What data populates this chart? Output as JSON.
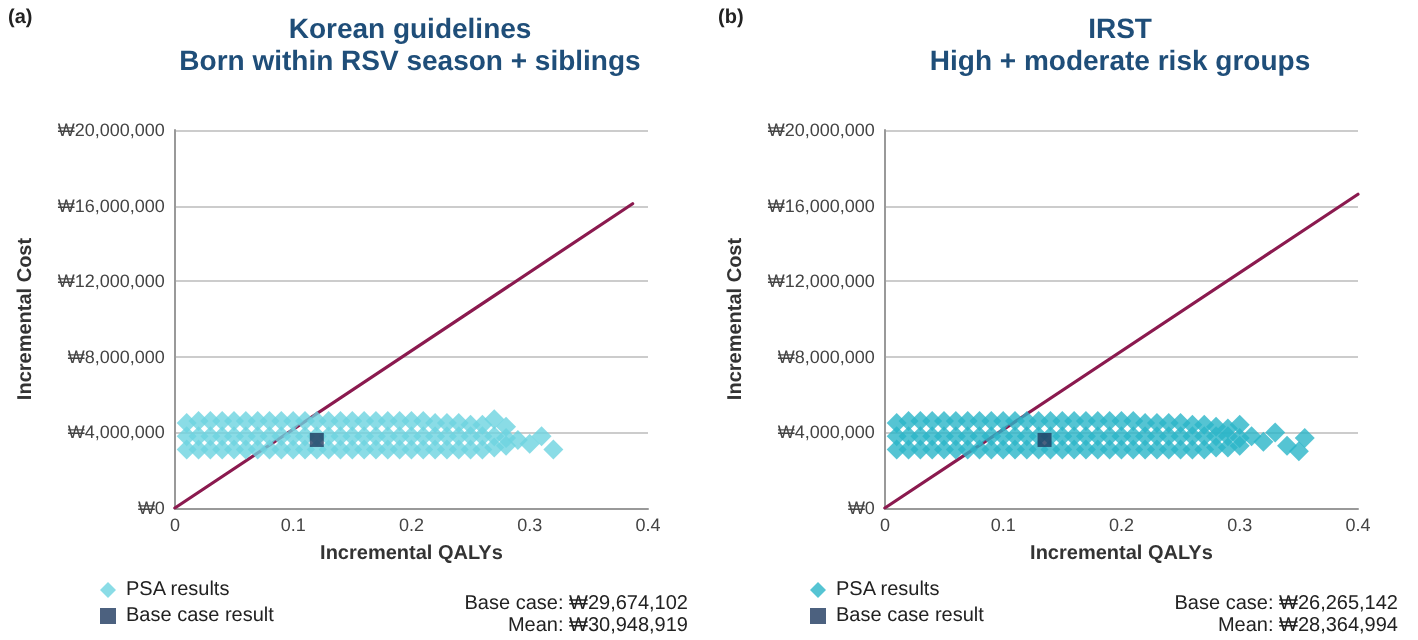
{
  "chart_data": [
    {
      "type": "scatter",
      "title": "Korean guidelines",
      "subtitle": "Born within RSV season + siblings",
      "xlabel": "Incremental QALYs",
      "ylabel": "Incremental Cost",
      "annotations": [
        "(a)",
        "Base case: ₩29,674,102",
        "Mean: ₩30,948,919"
      ],
      "xlim": [
        0,
        0.4
      ],
      "xticks": [
        0,
        0.1,
        0.2,
        0.3,
        0.4
      ],
      "ylim": [
        0,
        20000000
      ],
      "yticks": [
        {
          "value": 0,
          "label": "₩0"
        },
        {
          "value": 4000000,
          "label": "₩4,000,000"
        },
        {
          "value": 8000000,
          "label": "₩8,000,000"
        },
        {
          "value": 12000000,
          "label": "₩12,000,000"
        },
        {
          "value": 16000000,
          "label": "₩16,000,000"
        },
        {
          "value": 20000000,
          "label": "₩20,000,000"
        }
      ],
      "grid": "y",
      "legend": "bottom left",
      "series": [
        {
          "name": "PSA results",
          "marker": "diamond",
          "color": "#6dd3e0",
          "x": [
            0.01,
            0.02,
            0.03,
            0.04,
            0.05,
            0.06,
            0.07,
            0.08,
            0.09,
            0.1,
            0.11,
            0.12,
            0.13,
            0.14,
            0.15,
            0.16,
            0.17,
            0.18,
            0.19,
            0.2,
            0.21,
            0.22,
            0.23,
            0.24,
            0.25,
            0.26,
            0.27,
            0.28,
            0.01,
            0.02,
            0.03,
            0.04,
            0.05,
            0.06,
            0.07,
            0.08,
            0.09,
            0.1,
            0.11,
            0.12,
            0.13,
            0.14,
            0.15,
            0.16,
            0.17,
            0.18,
            0.19,
            0.2,
            0.21,
            0.22,
            0.23,
            0.24,
            0.25,
            0.26,
            0.27,
            0.28,
            0.01,
            0.02,
            0.03,
            0.04,
            0.05,
            0.06,
            0.07,
            0.08,
            0.09,
            0.1,
            0.11,
            0.12,
            0.13,
            0.14,
            0.15,
            0.16,
            0.17,
            0.18,
            0.19,
            0.2,
            0.21,
            0.22,
            0.23,
            0.24,
            0.25,
            0.26,
            0.27,
            0.28,
            0.29,
            0.3,
            0.31,
            0.32
          ],
          "values": [
            3100000,
            3100000,
            3100000,
            3100000,
            3100000,
            3100000,
            3100000,
            3100000,
            3100000,
            3100000,
            3100000,
            3100000,
            3100000,
            3100000,
            3100000,
            3100000,
            3100000,
            3100000,
            3100000,
            3100000,
            3100000,
            3100000,
            3100000,
            3100000,
            3100000,
            3100000,
            3200000,
            3300000,
            3800000,
            3800000,
            3800000,
            3800000,
            3800000,
            3800000,
            3800000,
            3800000,
            3800000,
            3800000,
            3800000,
            3800000,
            3800000,
            3800000,
            3800000,
            3800000,
            3800000,
            3800000,
            3800000,
            3800000,
            3800000,
            3800000,
            3800000,
            3800000,
            3800000,
            3800000,
            3800000,
            3700000,
            4500000,
            4600000,
            4600000,
            4600000,
            4600000,
            4600000,
            4600000,
            4600000,
            4600000,
            4600000,
            4600000,
            4600000,
            4600000,
            4600000,
            4600000,
            4600000,
            4600000,
            4600000,
            4600000,
            4600000,
            4600000,
            4500000,
            4500000,
            4500000,
            4400000,
            4400000,
            4700000,
            4300000,
            3600000,
            3400000,
            3800000,
            3100000
          ]
        },
        {
          "name": "Base case result",
          "marker": "square",
          "color": "#1f3a5f",
          "x": [
            0.12
          ],
          "values": [
            3600000
          ]
        },
        {
          "type": "line",
          "marker": "none",
          "line_style": "solid",
          "color": "#8b1a4f",
          "x": [
            0,
            0.387
          ],
          "values": [
            0,
            16100000
          ]
        }
      ]
    },
    {
      "type": "scatter",
      "title": "IRST",
      "subtitle": "High + moderate risk groups",
      "xlabel": "Incremental QALYs",
      "ylabel": "Incremental Cost",
      "annotations": [
        "(b)",
        "Base case: ₩26,265,142",
        "Mean: ₩28,364,994"
      ],
      "xlim": [
        0,
        0.4
      ],
      "xticks": [
        0,
        0.1,
        0.2,
        0.3,
        0.4
      ],
      "ylim": [
        0,
        20000000
      ],
      "yticks": [
        {
          "value": 0,
          "label": "₩0"
        },
        {
          "value": 4000000,
          "label": "₩4,000,000"
        },
        {
          "value": 8000000,
          "label": "₩8,000,000"
        },
        {
          "value": 12000000,
          "label": "₩12,000,000"
        },
        {
          "value": 16000000,
          "label": "₩16,000,000"
        },
        {
          "value": 20000000,
          "label": "₩20,000,000"
        }
      ],
      "grid": "y",
      "legend": "bottom left",
      "series": [
        {
          "name": "PSA results",
          "marker": "diamond",
          "color": "#2bb5c8",
          "x": [
            0.01,
            0.02,
            0.03,
            0.04,
            0.05,
            0.06,
            0.07,
            0.08,
            0.09,
            0.1,
            0.11,
            0.12,
            0.13,
            0.14,
            0.15,
            0.16,
            0.17,
            0.18,
            0.19,
            0.2,
            0.21,
            0.22,
            0.23,
            0.24,
            0.25,
            0.26,
            0.27,
            0.28,
            0.29,
            0.3,
            0.01,
            0.02,
            0.03,
            0.04,
            0.05,
            0.06,
            0.07,
            0.08,
            0.09,
            0.1,
            0.11,
            0.12,
            0.13,
            0.14,
            0.15,
            0.16,
            0.17,
            0.18,
            0.19,
            0.2,
            0.21,
            0.22,
            0.23,
            0.24,
            0.25,
            0.26,
            0.27,
            0.28,
            0.29,
            0.3,
            0.01,
            0.02,
            0.03,
            0.04,
            0.05,
            0.06,
            0.07,
            0.08,
            0.09,
            0.1,
            0.11,
            0.12,
            0.13,
            0.14,
            0.15,
            0.16,
            0.17,
            0.18,
            0.19,
            0.2,
            0.21,
            0.22,
            0.23,
            0.24,
            0.25,
            0.26,
            0.27,
            0.28,
            0.29,
            0.3,
            0.31,
            0.32,
            0.33,
            0.34,
            0.35,
            0.355
          ],
          "values": [
            3100000,
            3100000,
            3100000,
            3100000,
            3100000,
            3100000,
            3100000,
            3100000,
            3100000,
            3100000,
            3100000,
            3100000,
            3100000,
            3100000,
            3100000,
            3100000,
            3100000,
            3100000,
            3100000,
            3100000,
            3100000,
            3100000,
            3100000,
            3100000,
            3100000,
            3100000,
            3100000,
            3200000,
            3200000,
            3300000,
            3800000,
            3800000,
            3800000,
            3800000,
            3800000,
            3800000,
            3800000,
            3800000,
            3800000,
            3800000,
            3800000,
            3800000,
            3800000,
            3800000,
            3800000,
            3800000,
            3800000,
            3800000,
            3800000,
            3800000,
            3800000,
            3800000,
            3800000,
            3800000,
            3800000,
            3800000,
            3800000,
            3800000,
            3800000,
            3700000,
            4500000,
            4600000,
            4600000,
            4600000,
            4600000,
            4600000,
            4600000,
            4600000,
            4600000,
            4600000,
            4600000,
            4600000,
            4600000,
            4600000,
            4600000,
            4600000,
            4600000,
            4600000,
            4600000,
            4600000,
            4600000,
            4500000,
            4500000,
            4500000,
            4500000,
            4400000,
            4400000,
            4300000,
            4200000,
            4400000,
            3800000,
            3500000,
            4000000,
            3300000,
            3000000,
            3700000
          ]
        },
        {
          "name": "Base case result",
          "marker": "square",
          "color": "#1f3a5f",
          "x": [
            0.135
          ],
          "values": [
            3600000
          ]
        },
        {
          "type": "line",
          "marker": "none",
          "line_style": "solid",
          "color": "#8b1a4f",
          "x": [
            0,
            0.4
          ],
          "values": [
            0,
            16600000
          ]
        }
      ]
    }
  ]
}
